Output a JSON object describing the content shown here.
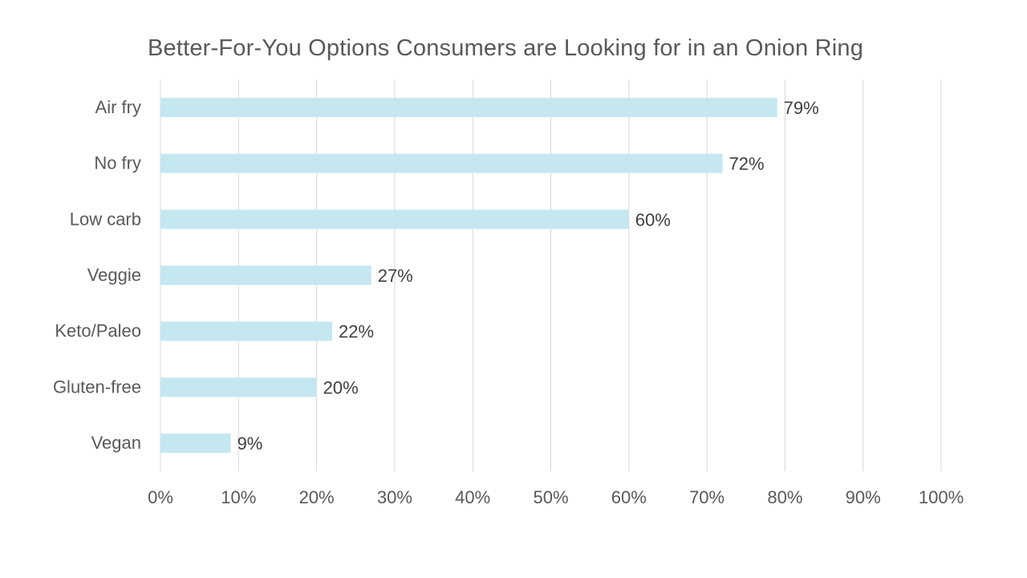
{
  "chart_data": {
    "type": "bar",
    "orientation": "horizontal",
    "title": "Better-For-You Options Consumers are Looking for in an Onion Ring",
    "categories": [
      "Air fry",
      "No fry",
      "Low carb",
      "Veggie",
      "Keto/Paleo",
      "Gluten-free",
      "Vegan"
    ],
    "values": [
      79,
      72,
      60,
      27,
      22,
      20,
      9
    ],
    "data_labels": [
      "79%",
      "72%",
      "60%",
      "27%",
      "22%",
      "20%",
      "9%"
    ],
    "x_ticks": [
      "0%",
      "10%",
      "20%",
      "30%",
      "40%",
      "50%",
      "60%",
      "70%",
      "80%",
      "90%",
      "100%"
    ],
    "xlim": [
      0,
      100
    ],
    "xlabel": "",
    "ylabel": "",
    "grid": "vertical",
    "legend": "none",
    "colors": {
      "bar": "#c5e7f0",
      "grid": "#d9d9d9",
      "text": "#595959",
      "label": "#404040"
    }
  }
}
